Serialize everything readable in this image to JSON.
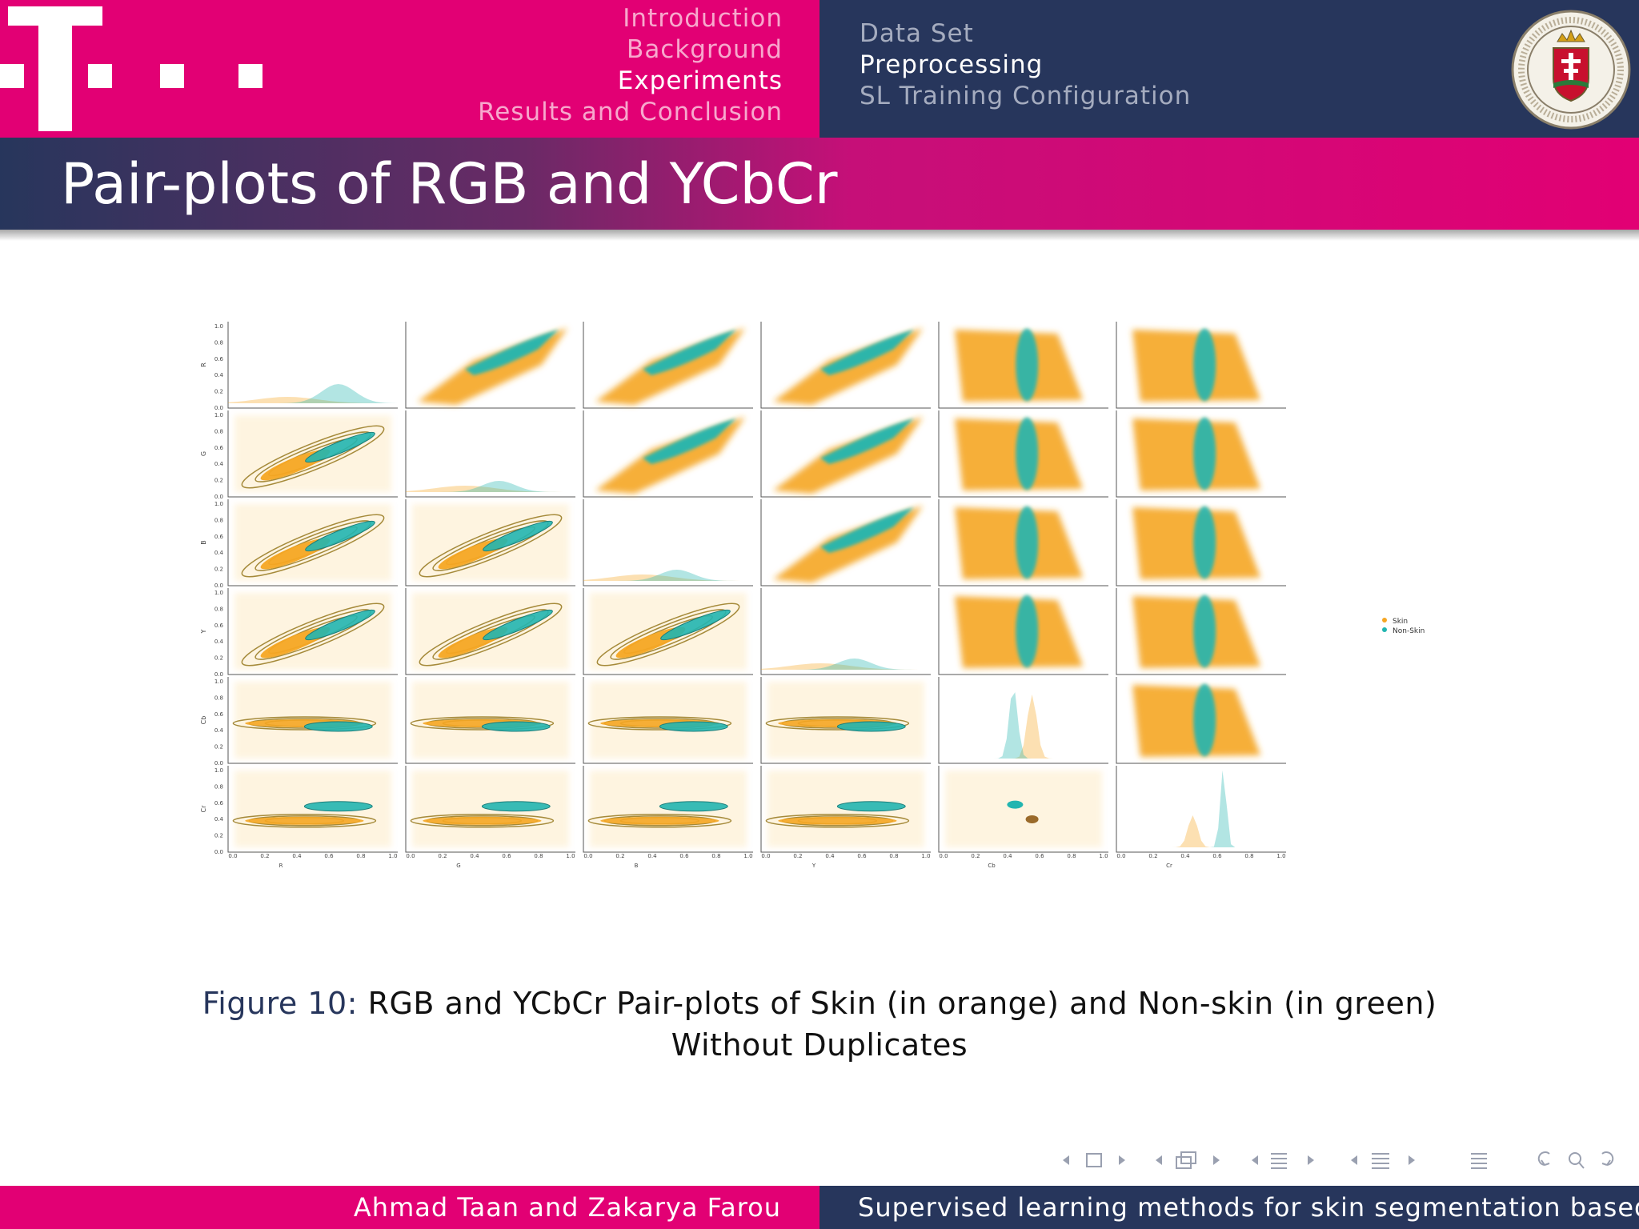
{
  "header": {
    "sections": [
      {
        "label": "Introduction",
        "active": false
      },
      {
        "label": "Background",
        "active": false
      },
      {
        "label": "Experiments",
        "active": true
      },
      {
        "label": "Results and Conclusion",
        "active": false
      }
    ],
    "subsections": [
      {
        "label": "Data Set",
        "active": false
      },
      {
        "label": "Preprocessing",
        "active": true
      },
      {
        "label": "SL Training Configuration",
        "active": false
      }
    ]
  },
  "slide": {
    "title": "Pair-plots of RGB and YCbCr"
  },
  "figure": {
    "caption_label": "Figure 10:",
    "caption_text": "RGB and YCbCr Pair-plots of Skin (in orange) and Non-skin (in green)",
    "caption_text_line2": "Without Duplicates"
  },
  "chart_data": {
    "type": "scatter",
    "variables": [
      "R",
      "G",
      "B",
      "Y",
      "Cb",
      "Cr"
    ],
    "tick_labels": [
      "0.0",
      "0.2",
      "0.4",
      "0.6",
      "0.8",
      "1.0"
    ],
    "xlim": [
      0,
      1
    ],
    "ylim": [
      0,
      1
    ],
    "legend": {
      "placement": "right",
      "entries": [
        "Skin",
        "Non-Skin"
      ]
    },
    "series": [
      {
        "name": "Skin",
        "color": "#f5a623"
      },
      {
        "name": "Non-Skin",
        "color": "#22b5b0"
      }
    ],
    "diagonal": "kde",
    "upper": "scatter",
    "lower": "kde-contour"
  },
  "footer": {
    "authors": "Ahmad Taan and Zakarya Farou",
    "talk_title": "Supervised learning methods for skin segmentation based o"
  },
  "colors": {
    "magenta": "#e20074",
    "navy": "#27365c",
    "skin": "#f5a623",
    "nonskin": "#22b5b0"
  },
  "icons": {
    "logo": "telekom-t-logo",
    "seal": "university-seal"
  }
}
